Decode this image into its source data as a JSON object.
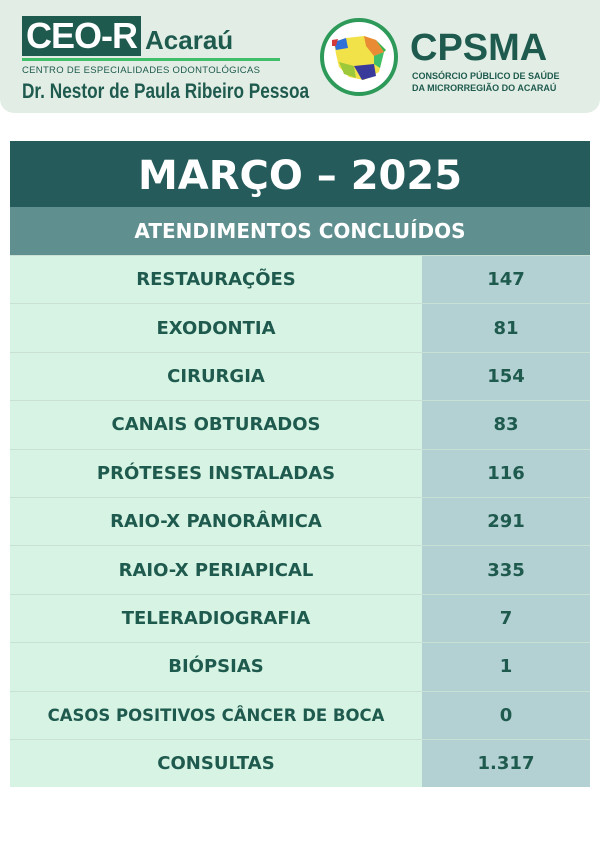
{
  "header": {
    "ceo_box": "CEO-R",
    "ceo_city": "Acaraú",
    "ceo_subtitle": "CENTRO DE ESPECIALIDADES ODONTOLÓGICAS",
    "ceo_name": "Dr. Nestor de Paula Ribeiro Pessoa",
    "cpsma_title": "CPSMA",
    "cpsma_line1": "CONSÓRCIO PÚBLICO DE SAÚDE",
    "cpsma_line2": "DA MICRORREGIÃO DO ACARAÚ"
  },
  "table": {
    "title": "MARÇO – 2025",
    "subtitle": "ATENDIMENTOS CONCLUÍDOS",
    "rows": [
      {
        "label": "RESTAURAÇÕES",
        "value": "147"
      },
      {
        "label": "EXODONTIA",
        "value": "81"
      },
      {
        "label": "CIRURGIA",
        "value": "154"
      },
      {
        "label": "CANAIS OBTURADOS",
        "value": "83"
      },
      {
        "label": "PRÓTESES INSTALADAS",
        "value": "116"
      },
      {
        "label": "RAIO-X PANORÂMICA",
        "value": "291"
      },
      {
        "label": "RAIO-X PERIAPICAL",
        "value": "335"
      },
      {
        "label": "TELERADIOGRAFIA",
        "value": "7"
      },
      {
        "label": "BIÓPSIAS",
        "value": "1"
      },
      {
        "label": "CASOS POSITIVOS CÂNCER DE BOCA",
        "value": "0"
      },
      {
        "label": "CONSULTAS",
        "value": "1.317"
      }
    ]
  },
  "colors": {
    "dark": "#255c5b",
    "sub": "#5f8f8e",
    "label_bg": "#d6f3e3",
    "value_bg": "#b3d1d2",
    "text": "#1f5a4e"
  }
}
